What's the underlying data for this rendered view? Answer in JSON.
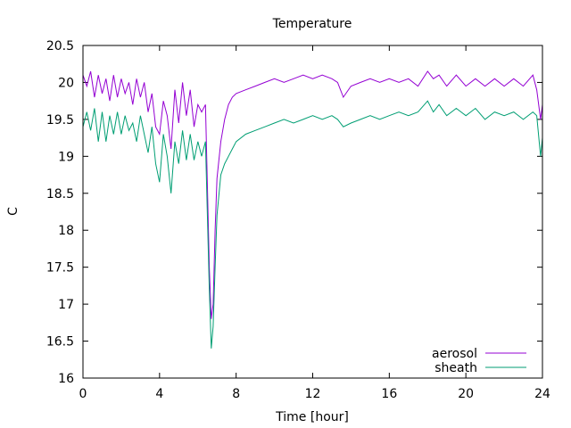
{
  "chart_data": {
    "type": "line",
    "title": "Temperature",
    "xlabel": "Time [hour]",
    "ylabel": "C",
    "xlim": [
      0,
      24
    ],
    "ylim": [
      16,
      20.5
    ],
    "xticks": [
      0,
      4,
      8,
      12,
      16,
      20,
      24
    ],
    "yticks": [
      16,
      16.5,
      17,
      17.5,
      18,
      18.5,
      19,
      19.5,
      20,
      20.5
    ],
    "ytick_labels": [
      "16",
      "16.5",
      "17",
      "17.5",
      "18",
      "18.5",
      "19",
      "19.5",
      "20",
      "20.5"
    ],
    "grid": false,
    "legend_position": "bottom-right",
    "series": [
      {
        "name": "aerosol",
        "color": "#9400d3",
        "x": [
          0,
          0.2,
          0.4,
          0.6,
          0.8,
          1.0,
          1.2,
          1.4,
          1.6,
          1.8,
          2.0,
          2.2,
          2.4,
          2.6,
          2.8,
          3.0,
          3.2,
          3.4,
          3.6,
          3.8,
          4.0,
          4.2,
          4.4,
          4.6,
          4.8,
          5.0,
          5.2,
          5.4,
          5.6,
          5.8,
          6.0,
          6.2,
          6.4,
          6.6,
          6.7,
          6.8,
          6.9,
          7.0,
          7.2,
          7.4,
          7.6,
          7.8,
          8.0,
          8.5,
          9.0,
          9.5,
          10.0,
          10.5,
          11.0,
          11.5,
          12.0,
          12.5,
          13.0,
          13.3,
          13.6,
          14.0,
          14.5,
          15.0,
          15.5,
          16.0,
          16.5,
          17.0,
          17.5,
          18.0,
          18.3,
          18.6,
          19.0,
          19.5,
          20.0,
          20.5,
          21.0,
          21.5,
          22.0,
          22.5,
          23.0,
          23.5,
          23.7,
          23.9,
          24.0
        ],
        "values": [
          20.1,
          19.95,
          20.15,
          19.8,
          20.1,
          19.85,
          20.05,
          19.75,
          20.1,
          19.8,
          20.05,
          19.85,
          20.0,
          19.7,
          20.05,
          19.8,
          20.0,
          19.6,
          19.85,
          19.4,
          19.3,
          19.75,
          19.55,
          19.1,
          19.9,
          19.45,
          20.0,
          19.55,
          19.9,
          19.4,
          19.7,
          19.6,
          19.7,
          17.5,
          16.8,
          17.0,
          18.0,
          18.7,
          19.2,
          19.5,
          19.7,
          19.8,
          19.85,
          19.9,
          19.95,
          20.0,
          20.05,
          20.0,
          20.05,
          20.1,
          20.05,
          20.1,
          20.05,
          20.0,
          19.8,
          19.95,
          20.0,
          20.05,
          20.0,
          20.05,
          20.0,
          20.05,
          19.95,
          20.15,
          20.05,
          20.1,
          19.95,
          20.1,
          19.95,
          20.05,
          19.95,
          20.05,
          19.95,
          20.05,
          19.95,
          20.1,
          19.9,
          19.5,
          19.7
        ]
      },
      {
        "name": "sheath",
        "color": "#009e73",
        "x": [
          0,
          0.2,
          0.4,
          0.6,
          0.8,
          1.0,
          1.2,
          1.4,
          1.6,
          1.8,
          2.0,
          2.2,
          2.4,
          2.6,
          2.8,
          3.0,
          3.2,
          3.4,
          3.6,
          3.8,
          4.0,
          4.2,
          4.4,
          4.6,
          4.8,
          5.0,
          5.2,
          5.4,
          5.6,
          5.8,
          6.0,
          6.2,
          6.4,
          6.6,
          6.7,
          6.8,
          6.9,
          7.0,
          7.2,
          7.4,
          7.6,
          7.8,
          8.0,
          8.5,
          9.0,
          9.5,
          10.0,
          10.5,
          11.0,
          11.5,
          12.0,
          12.5,
          13.0,
          13.3,
          13.6,
          14.0,
          14.5,
          15.0,
          15.5,
          16.0,
          16.5,
          17.0,
          17.5,
          18.0,
          18.3,
          18.6,
          19.0,
          19.5,
          20.0,
          20.5,
          21.0,
          21.5,
          22.0,
          22.5,
          23.0,
          23.5,
          23.7,
          23.9,
          24.0
        ],
        "values": [
          19.4,
          19.6,
          19.35,
          19.65,
          19.2,
          19.6,
          19.2,
          19.55,
          19.3,
          19.6,
          19.3,
          19.55,
          19.35,
          19.45,
          19.2,
          19.55,
          19.3,
          19.05,
          19.4,
          18.9,
          18.65,
          19.3,
          19.0,
          18.5,
          19.2,
          18.9,
          19.35,
          18.95,
          19.3,
          18.95,
          19.2,
          19.0,
          19.2,
          17.2,
          16.4,
          16.7,
          17.5,
          18.2,
          18.75,
          18.9,
          19.0,
          19.1,
          19.2,
          19.3,
          19.35,
          19.4,
          19.45,
          19.5,
          19.45,
          19.5,
          19.55,
          19.5,
          19.55,
          19.5,
          19.4,
          19.45,
          19.5,
          19.55,
          19.5,
          19.55,
          19.6,
          19.55,
          19.6,
          19.75,
          19.6,
          19.7,
          19.55,
          19.65,
          19.55,
          19.65,
          19.5,
          19.6,
          19.55,
          19.6,
          19.5,
          19.6,
          19.55,
          19.0,
          19.25
        ]
      }
    ]
  }
}
